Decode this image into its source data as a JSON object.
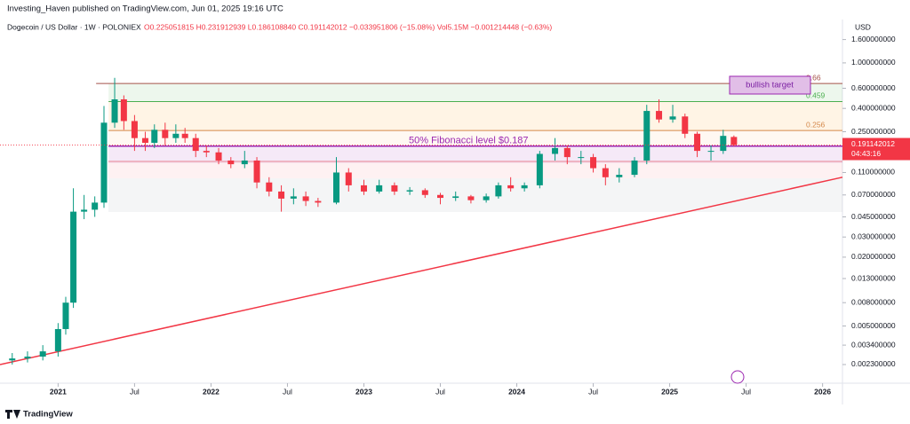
{
  "header": {
    "publisher": "Investing_Haven published on TradingView.com, Jun 01, 2025 19:16 UTC",
    "footer": "TradingView"
  },
  "chart_data": {
    "type": "candlestick",
    "title": "Dogecoin / US Dollar · 1W · POLONIEX",
    "subtitle": "O0.225051815 H0.231912939 L0.186108840 C0.191142012 −0.033951806 (−15.08%) Vol5.15M −0.001214448 (−0.63%)",
    "currency": "USD",
    "last_price": {
      "value": 0.191142012,
      "label": "0.191142012",
      "countdown": "04:43:16"
    },
    "log_scale": true,
    "up_color": "#089981",
    "down_color": "#f23645",
    "x": [
      2020.7,
      2020.8,
      2020.9,
      2021.0,
      2021.05,
      2021.1,
      2021.17,
      2021.24,
      2021.3,
      2021.37,
      2021.43,
      2021.5,
      2021.57,
      2021.63,
      2021.7,
      2021.77,
      2021.83,
      2021.9,
      2021.97,
      2022.05,
      2022.13,
      2022.22,
      2022.3,
      2022.38,
      2022.46,
      2022.54,
      2022.62,
      2022.7,
      2022.82,
      2022.9,
      2023.0,
      2023.1,
      2023.2,
      2023.3,
      2023.4,
      2023.5,
      2023.6,
      2023.7,
      2023.8,
      2023.88,
      2023.96,
      2024.05,
      2024.15,
      2024.25,
      2024.33,
      2024.42,
      2024.5,
      2024.58,
      2024.67,
      2024.77,
      2024.85,
      2024.93,
      2025.02,
      2025.1,
      2025.18,
      2025.27,
      2025.35,
      2025.42
    ],
    "open": [
      0.0025,
      0.0026,
      0.0027,
      0.003,
      0.0047,
      0.008,
      0.05,
      0.052,
      0.06,
      0.3,
      0.48,
      0.31,
      0.22,
      0.2,
      0.26,
      0.22,
      0.24,
      0.22,
      0.17,
      0.165,
      0.14,
      0.13,
      0.14,
      0.09,
      0.075,
      0.065,
      0.068,
      0.062,
      0.06,
      0.11,
      0.085,
      0.075,
      0.085,
      0.075,
      0.077,
      0.07,
      0.066,
      0.068,
      0.063,
      0.068,
      0.085,
      0.08,
      0.085,
      0.16,
      0.18,
      0.15,
      0.15,
      0.12,
      0.1,
      0.105,
      0.14,
      0.38,
      0.32,
      0.34,
      0.24,
      0.17,
      0.17,
      0.225051815
    ],
    "high": [
      0.0029,
      0.003,
      0.0034,
      0.0053,
      0.009,
      0.08,
      0.07,
      0.068,
      0.42,
      0.74,
      0.52,
      0.35,
      0.25,
      0.29,
      0.3,
      0.29,
      0.27,
      0.24,
      0.19,
      0.18,
      0.15,
      0.17,
      0.15,
      0.1,
      0.085,
      0.08,
      0.075,
      0.066,
      0.15,
      0.12,
      0.095,
      0.095,
      0.09,
      0.082,
      0.08,
      0.073,
      0.075,
      0.07,
      0.072,
      0.09,
      0.1,
      0.09,
      0.17,
      0.22,
      0.19,
      0.17,
      0.16,
      0.13,
      0.12,
      0.15,
      0.43,
      0.48,
      0.43,
      0.36,
      0.25,
      0.19,
      0.26,
      0.231912939
    ],
    "low": [
      0.0023,
      0.0024,
      0.0025,
      0.0027,
      0.0042,
      0.0072,
      0.043,
      0.045,
      0.054,
      0.27,
      0.26,
      0.17,
      0.17,
      0.18,
      0.19,
      0.2,
      0.2,
      0.15,
      0.15,
      0.13,
      0.12,
      0.12,
      0.08,
      0.068,
      0.05,
      0.058,
      0.056,
      0.055,
      0.058,
      0.075,
      0.07,
      0.072,
      0.07,
      0.07,
      0.066,
      0.058,
      0.062,
      0.059,
      0.06,
      0.065,
      0.075,
      0.075,
      0.08,
      0.14,
      0.13,
      0.13,
      0.11,
      0.085,
      0.09,
      0.1,
      0.13,
      0.3,
      0.3,
      0.22,
      0.15,
      0.14,
      0.16,
      0.18610884
    ],
    "close": [
      0.0026,
      0.0027,
      0.003,
      0.0047,
      0.008,
      0.05,
      0.052,
      0.06,
      0.3,
      0.48,
      0.31,
      0.22,
      0.2,
      0.26,
      0.22,
      0.24,
      0.22,
      0.17,
      0.165,
      0.14,
      0.13,
      0.14,
      0.09,
      0.075,
      0.065,
      0.068,
      0.062,
      0.06,
      0.11,
      0.085,
      0.075,
      0.085,
      0.075,
      0.077,
      0.07,
      0.066,
      0.068,
      0.063,
      0.068,
      0.085,
      0.08,
      0.085,
      0.16,
      0.18,
      0.15,
      0.15,
      0.12,
      0.1,
      0.105,
      0.14,
      0.38,
      0.32,
      0.34,
      0.24,
      0.17,
      0.17,
      0.23,
      0.191142012
    ],
    "xlim": [
      2020.62,
      2026.13
    ],
    "ylim": [
      0.00158,
      1.8
    ],
    "xticks": [
      {
        "value": 2021,
        "label": "2021"
      },
      {
        "value": 2021.5,
        "label": "Jul"
      },
      {
        "value": 2022,
        "label": "2022"
      },
      {
        "value": 2022.5,
        "label": "Jul"
      },
      {
        "value": 2023,
        "label": "2023"
      },
      {
        "value": 2023.5,
        "label": "Jul"
      },
      {
        "value": 2024,
        "label": "2024"
      },
      {
        "value": 2024.5,
        "label": "Jul"
      },
      {
        "value": 2025,
        "label": "2025"
      },
      {
        "value": 2025.5,
        "label": "Jul"
      },
      {
        "value": 2026,
        "label": "2026"
      }
    ],
    "yticks": [
      {
        "value": 1.6,
        "label": "1.600000000"
      },
      {
        "value": 1,
        "label": "1.000000000"
      },
      {
        "value": 0.6,
        "label": "0.600000000"
      },
      {
        "value": 0.4,
        "label": "0.400000000"
      },
      {
        "value": 0.25,
        "label": "0.250000000"
      },
      {
        "value": 0.11,
        "label": "0.110000000"
      },
      {
        "value": 0.07,
        "label": "0.070000000"
      },
      {
        "value": 0.045,
        "label": "0.045000000"
      },
      {
        "value": 0.03,
        "label": "0.030000000"
      },
      {
        "value": 0.02,
        "label": "0.020000000"
      },
      {
        "value": 0.013,
        "label": "0.013000000"
      },
      {
        "value": 0.008,
        "label": "0.008000000"
      },
      {
        "value": 0.005,
        "label": "0.005000000"
      },
      {
        "value": 0.0034,
        "label": "0.003400000"
      },
      {
        "value": 0.0023,
        "label": "0.002300000"
      }
    ],
    "fib_levels": [
      {
        "value": 0.66,
        "color": "#a5524a",
        "zone": "rgba(76,175,80,0.10)"
      },
      {
        "value": 0.459,
        "color": "#4caf50",
        "zone": "rgba(255,152,0,0.10)"
      },
      {
        "value": 0.256,
        "color": "#d4884a",
        "zone": "rgba(255,200,150,0.12)"
      }
    ],
    "fib_start": 2021.33,
    "fib_50": {
      "value": 0.187,
      "label": "50% Fibonacci level $0.187",
      "color": "#9c27b0"
    },
    "target_label": "bullish target",
    "trendline": {
      "x": [
        2020.62,
        2026.13
      ],
      "y": [
        0.0023,
        0.1
      ],
      "color": "#f23645"
    }
  }
}
